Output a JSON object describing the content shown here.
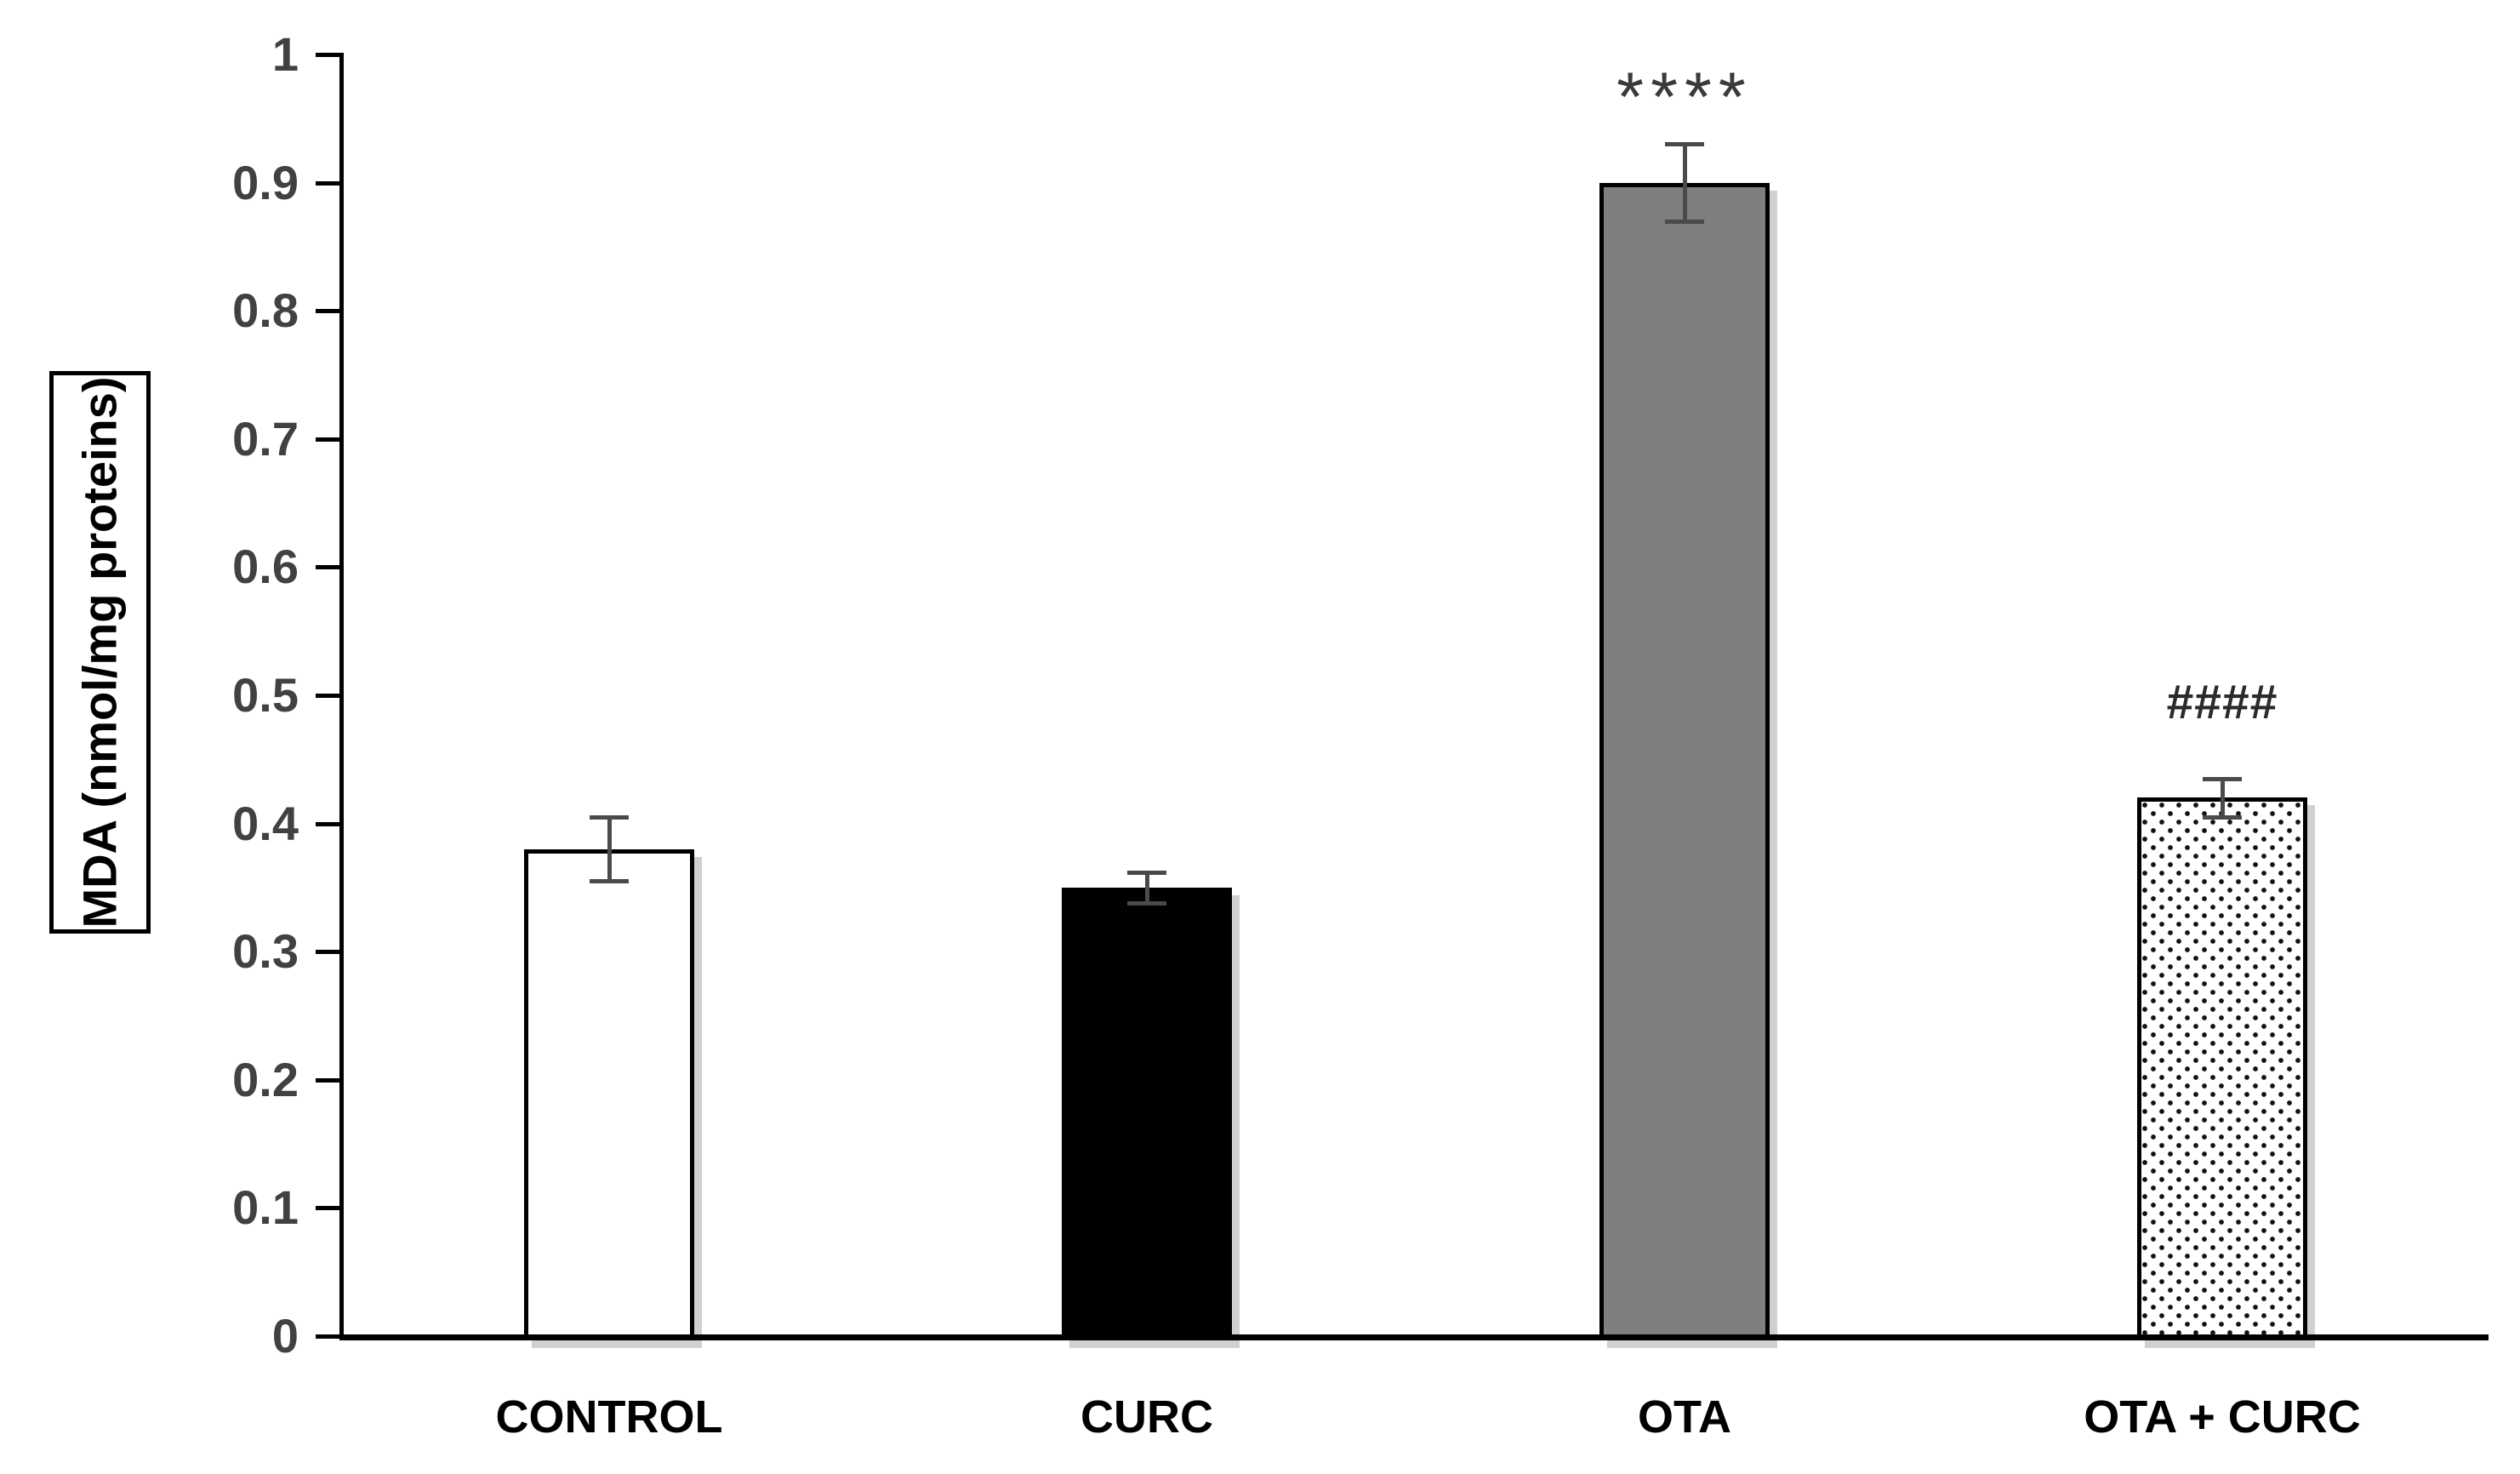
{
  "chart_data": {
    "type": "bar",
    "title": "",
    "xlabel": "",
    "ylabel": "MDA (nmol/mg proteins)",
    "categories": [
      "CONTROL",
      "CURC",
      "OTA",
      "OTA + CURC"
    ],
    "values": [
      0.38,
      0.35,
      0.9,
      0.42
    ],
    "error_bars": [
      0.025,
      0.012,
      0.03,
      0.015
    ],
    "annotations": [
      "",
      "",
      "****",
      "####"
    ],
    "ylim": [
      0,
      1
    ],
    "ytick_step": 0.1,
    "ytick_labels": [
      "0",
      "0.1",
      "0.2",
      "0.3",
      "0.4",
      "0.5",
      "0.6",
      "0.7",
      "0.8",
      "0.9",
      "1"
    ],
    "grid": false,
    "legend_position": "none",
    "bar_styles": [
      {
        "name": "control",
        "fill": "#ffffff",
        "pattern": "solid",
        "border": "#000000"
      },
      {
        "name": "curc",
        "fill": "#000000",
        "pattern": "solid",
        "border": "#000000"
      },
      {
        "name": "ota",
        "fill": "#7f7f7f",
        "pattern": "solid",
        "border": "#000000"
      },
      {
        "name": "ota-curc",
        "fill": "#ffffff",
        "pattern": "dots",
        "border": "#000000"
      }
    ],
    "colors": {
      "axis": "#000000",
      "tick_label": "#414141",
      "error_bar": "#4a4a4a",
      "annotation": "#3a3a3a",
      "background": "#ffffff"
    }
  }
}
